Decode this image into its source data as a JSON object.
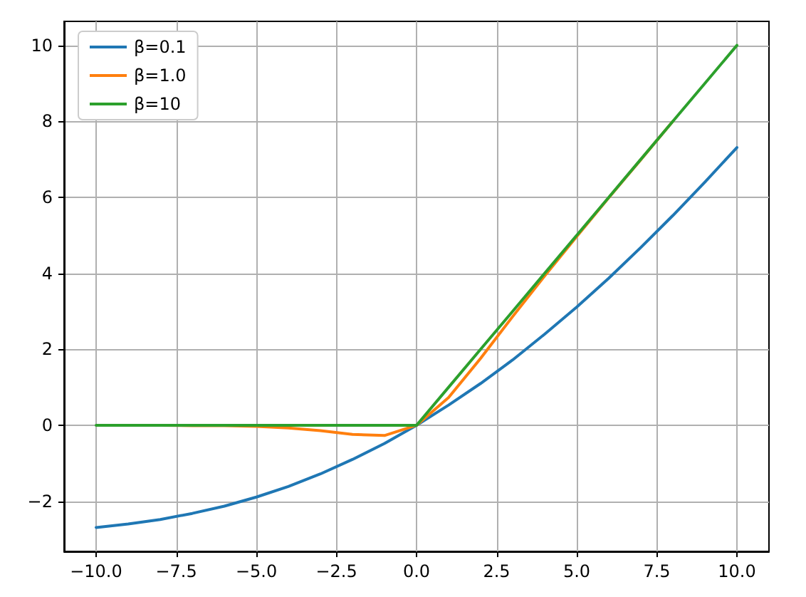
{
  "chart_data": {
    "type": "line",
    "x": [
      -10,
      -9,
      -8,
      -7,
      -6,
      -5,
      -4,
      -3,
      -2,
      -1,
      0,
      1,
      2,
      3,
      4,
      5,
      6,
      7,
      8,
      9,
      10
    ],
    "series": [
      {
        "name": "β=0.1",
        "color": "#1f77b4",
        "values": [
          -2.69,
          -2.6,
          -2.48,
          -2.32,
          -2.13,
          -1.89,
          -1.61,
          -1.28,
          -0.9,
          -0.48,
          0,
          0.53,
          1.1,
          1.72,
          2.4,
          3.11,
          3.87,
          4.68,
          5.52,
          6.4,
          7.31
        ]
      },
      {
        "name": "β=1.0",
        "color": "#ff7f0e",
        "values": [
          null,
          null,
          0,
          -0.01,
          -0.01,
          -0.03,
          -0.07,
          -0.14,
          -0.24,
          -0.27,
          0,
          0.73,
          1.76,
          2.86,
          3.93,
          4.97,
          5.99,
          6.99,
          8,
          null,
          null
        ]
      },
      {
        "name": "β=10",
        "color": "#2ca02c",
        "values": [
          0,
          0,
          0,
          0,
          0,
          0,
          0,
          0,
          0,
          0,
          0,
          1,
          2,
          3,
          4,
          5,
          6,
          7,
          8,
          9,
          10
        ]
      }
    ],
    "xlim": [
      -11,
      11
    ],
    "xticks": [
      {
        "value": -10,
        "label": "−10.0"
      },
      {
        "value": -7.5,
        "label": "−7.5"
      },
      {
        "value": -5,
        "label": "−5.0"
      },
      {
        "value": -2.5,
        "label": "−2.5"
      },
      {
        "value": 0,
        "label": "0.0"
      },
      {
        "value": 2.5,
        "label": "2.5"
      },
      {
        "value": 5,
        "label": "5.0"
      },
      {
        "value": 7.5,
        "label": "7.5"
      },
      {
        "value": 10,
        "label": "10.0"
      }
    ],
    "ylim": [
      -3.32,
      10.63
    ],
    "yticks": [
      {
        "value": -2,
        "label": "−2"
      },
      0,
      2,
      4,
      6,
      8,
      10
    ],
    "grid": true,
    "legend": "top left"
  }
}
